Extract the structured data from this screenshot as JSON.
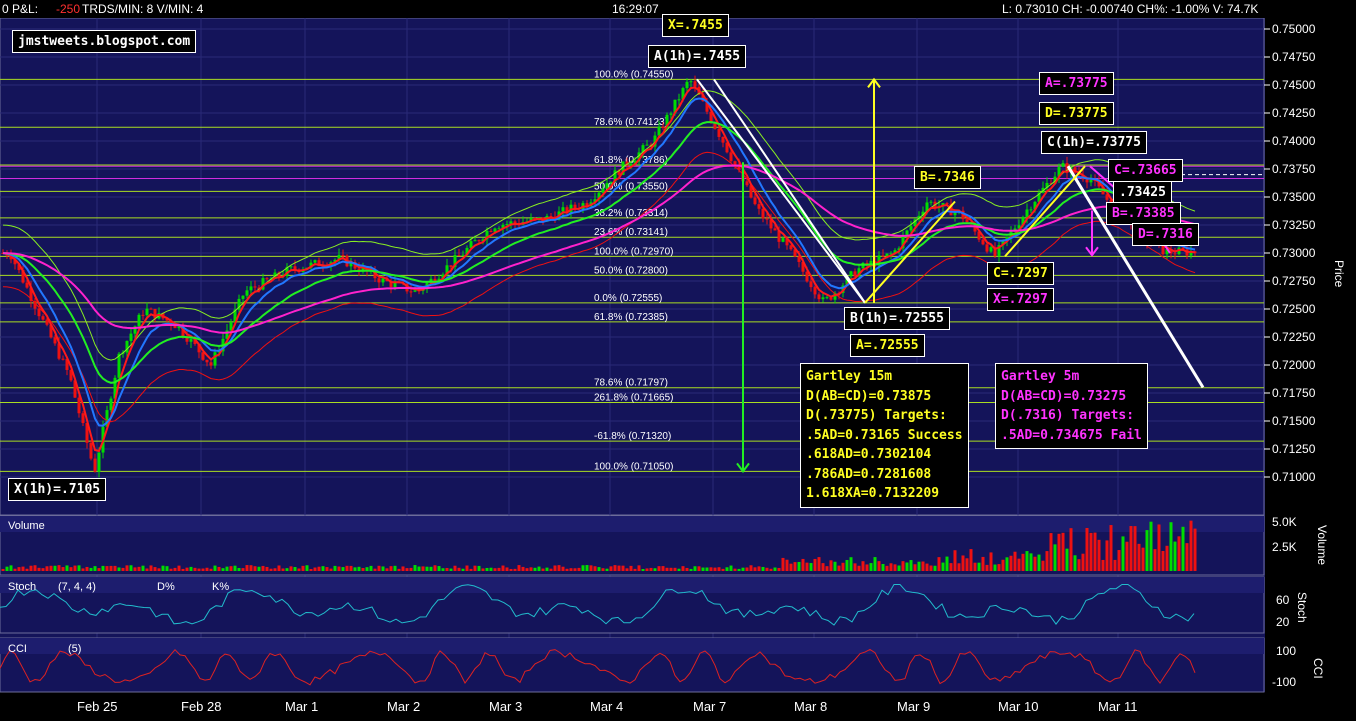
{
  "header": {
    "pl_label": "0 P&L:",
    "pl_value": "-250",
    "trds_label": "TRDS/MIN: 8 V/MIN: 4",
    "time": "16:29:07",
    "quote": "L: 0.73010 CH: -0.00740 CH%: -1.00% V: 74.7K"
  },
  "watermark": "jmstweets.blogspot.com",
  "colors": {
    "background": "#14145a",
    "candle_up": "#00dd00",
    "candle_down": "#ee1111",
    "pattern_15m": "#ffff22",
    "pattern_5m": "#ff33ff",
    "ema_short": "#ff1a1a",
    "ema_mid": "#2277ff",
    "ema_long": "#22ee22",
    "ema_vlong": "#ff22cc",
    "bollinger": "#88ee22",
    "fib_lines": "#aadd22",
    "stoch": "#22bbcc",
    "cci": "#dd2222"
  },
  "chart_data": [
    {
      "type": "candlestick",
      "title": "",
      "ylabel": "Price",
      "ylim": [
        0.71,
        0.75
      ],
      "y_ticks": [
        "0.75000",
        "0.74750",
        "0.74500",
        "0.74250",
        "0.74000",
        "0.73750",
        "0.73500",
        "0.73250",
        "0.73000",
        "0.72750",
        "0.72500",
        "0.72250",
        "0.72000",
        "0.71750",
        "0.71500",
        "0.71250",
        "0.71000"
      ],
      "x_ticks": [
        "Feb 25",
        "Feb 28",
        "Mar 1",
        "Mar 2",
        "Mar 3",
        "Mar 4",
        "Mar 7",
        "Mar 8",
        "Mar 9",
        "Mar 10",
        "Mar 11"
      ],
      "approx_path": [
        [
          "Feb 24",
          0.73
        ],
        [
          "Feb 25",
          0.719
        ],
        [
          "Feb 25",
          0.7105
        ],
        [
          "Feb 25",
          0.721
        ],
        [
          "Feb 25",
          0.725
        ],
        [
          "Feb 28",
          0.7235
        ],
        [
          "Feb 28",
          0.72
        ],
        [
          "Feb 28",
          0.7265
        ],
        [
          "Mar 1",
          0.7285
        ],
        [
          "Mar 1",
          0.7295
        ],
        [
          "Mar 2",
          0.7275
        ],
        [
          "Mar 2",
          0.7265
        ],
        [
          "Mar 2",
          0.729
        ],
        [
          "Mar 3",
          0.7325
        ],
        [
          "Mar 3",
          0.733
        ],
        [
          "Mar 4",
          0.7345
        ],
        [
          "Mar 4",
          0.7375
        ],
        [
          "Mar 4",
          0.74
        ],
        [
          "Mar 7",
          0.7455
        ],
        [
          "Mar 7",
          0.74
        ],
        [
          "Mar 7",
          0.734
        ],
        [
          "Mar 8",
          0.73
        ],
        [
          "Mar 8",
          0.72555
        ],
        [
          "Mar 8",
          0.7285
        ],
        [
          "Mar 9",
          0.73
        ],
        [
          "Mar 9",
          0.7346
        ],
        [
          "Mar 9",
          0.7335
        ],
        [
          "Mar 10",
          0.7297
        ],
        [
          "Mar 10",
          0.734
        ],
        [
          "Mar 10",
          0.73775
        ],
        [
          "Mar 11",
          0.7366
        ],
        [
          "Mar 11",
          0.73385
        ],
        [
          "Mar 11",
          0.7316
        ],
        [
          "Mar 11",
          0.7301
        ]
      ],
      "fib_levels": [
        {
          "label": "100.0% (0.74550)",
          "value": 0.7455
        },
        {
          "label": "78.6% (0.74123)",
          "value": 0.74123
        },
        {
          "label": "61.8% (0.73786)",
          "value": 0.73786
        },
        {
          "label": "50.0% (0.73550)",
          "value": 0.7355
        },
        {
          "label": "38.2% (0.73314)",
          "value": 0.73314
        },
        {
          "label": "23.6% (0.73141)",
          "value": 0.73141
        },
        {
          "label": "100.0% (0.72970)",
          "value": 0.7297
        },
        {
          "label": "50.0% (0.72800)",
          "value": 0.728
        },
        {
          "label": "0.0% (0.72555)",
          "value": 0.72555
        },
        {
          "label": "61.8% (0.72385)",
          "value": 0.72385
        },
        {
          "label": "78.6% (0.71797)",
          "value": 0.71797
        },
        {
          "label": "261.8% (0.71665)",
          "value": 0.71665
        },
        {
          "label": "-61.8% (0.71320)",
          "value": 0.7132
        },
        {
          "label": "100.0% (0.71050)",
          "value": 0.7105
        }
      ],
      "annotations_15m": [
        {
          "text": "X=.7455",
          "value": 0.7455
        },
        {
          "text": "A(1h)=.7455",
          "value": 0.7455
        },
        {
          "text": "B=.7346",
          "value": 0.7346
        },
        {
          "text": "B(1h)=.72555",
          "value": 0.72555
        },
        {
          "text": "A=.72555",
          "value": 0.72555
        },
        {
          "text": "C=.7297",
          "value": 0.7297
        },
        {
          "text": "D=.73775",
          "value": 0.73775
        },
        {
          "text": "C(1h)=.73775",
          "value": 0.73775
        },
        {
          "text": "X(1h)=.7105",
          "value": 0.7105
        },
        {
          "text": ".73425",
          "value": 0.73425
        }
      ],
      "annotations_5m": [
        {
          "text": "A=.73775",
          "value": 0.73775
        },
        {
          "text": "C=.73665",
          "value": 0.73665
        },
        {
          "text": "B=.73385",
          "value": 0.73385
        },
        {
          "text": "D=.7316",
          "value": 0.7316
        },
        {
          "text": "X=.7297",
          "value": 0.7297
        }
      ],
      "gartley_15m": {
        "title": "Gartley 15m",
        "lines": [
          "D(AB=CD)=0.73875",
          "D(.73775) Targets:",
          ".5AD=0.73165 Success",
          ".618AD=0.7302104",
          ".786AD=0.7281608",
          "1.618XA=0.7132209"
        ]
      },
      "gartley_5m": {
        "title": "Gartley 5m",
        "lines": [
          "D(AB=CD)=0.73275",
          "D(.7316) Targets:",
          ".5AD=0.734675 Fail"
        ]
      }
    },
    {
      "type": "bar",
      "title": "Volume",
      "ylabel": "Volume",
      "y_ticks": [
        "5.0K",
        "2.5K"
      ]
    },
    {
      "type": "line",
      "title": "Stoch",
      "legend_text": "(7, 4, 4)",
      "legend_d": "D%",
      "legend_k": "K%",
      "ylabel": "Stoch",
      "y_ticks": [
        "60",
        "20"
      ]
    },
    {
      "type": "line",
      "title": "CCI",
      "legend_text": "(5)",
      "ylabel": "CCI",
      "y_ticks": [
        "100",
        "-100"
      ]
    }
  ]
}
